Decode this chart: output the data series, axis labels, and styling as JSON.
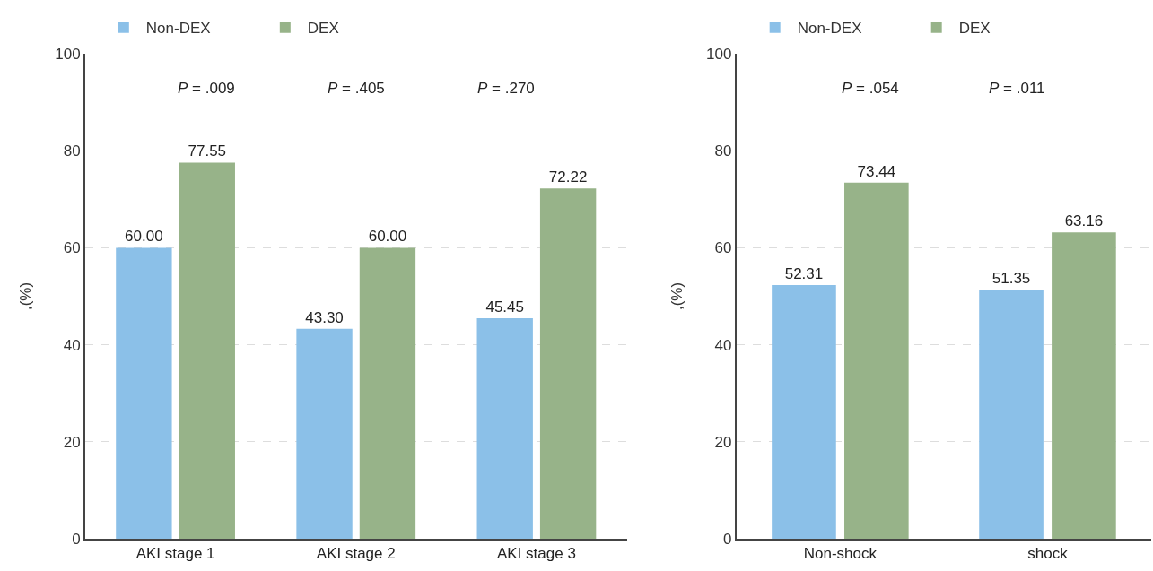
{
  "chart_data": [
    {
      "type": "bar",
      "ylabel": ",(%)",
      "categories": [
        "AKI stage 1",
        "AKI stage 2",
        "AKI stage 3"
      ],
      "series": [
        {
          "name": "Non-DEX",
          "color": "#8bc0e8",
          "values": [
            60.0,
            43.3,
            45.45
          ],
          "value_labels": [
            "60.00",
            "43.30",
            "45.45"
          ]
        },
        {
          "name": "DEX",
          "color": "#97b389",
          "values": [
            77.55,
            60.0,
            72.22
          ],
          "value_labels": [
            "77.55",
            "60.00",
            "72.22"
          ]
        }
      ],
      "ylim": [
        0,
        100
      ],
      "yticks": [
        0,
        20,
        40,
        60,
        80,
        100
      ],
      "grid": "y",
      "legend": "top left",
      "annotations": [
        "P = .009",
        "P = .405",
        "P = .270"
      ]
    },
    {
      "type": "bar",
      "ylabel": ",(%)",
      "categories": [
        "Non-shock",
        "shock"
      ],
      "series": [
        {
          "name": "Non-DEX",
          "color": "#8bc0e8",
          "values": [
            52.31,
            51.35
          ],
          "value_labels": [
            "52.31",
            "51.35"
          ]
        },
        {
          "name": "DEX",
          "color": "#97b389",
          "values": [
            73.44,
            63.16
          ],
          "value_labels": [
            "73.44",
            "63.16"
          ]
        }
      ],
      "ylim": [
        0,
        100
      ],
      "yticks": [
        0,
        20,
        40,
        60,
        80,
        100
      ],
      "grid": "y",
      "legend": "top left",
      "annotations": [
        "P = .054",
        "P = .011"
      ]
    }
  ]
}
